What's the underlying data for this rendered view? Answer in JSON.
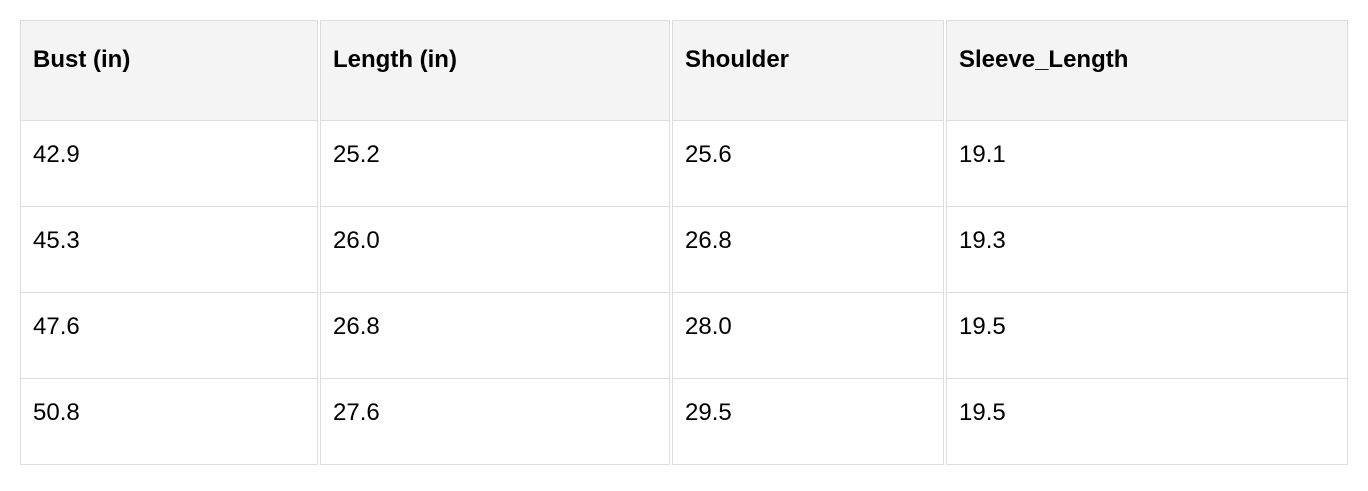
{
  "table": {
    "headers": [
      "Bust (in)",
      "Length (in)",
      "Shoulder",
      "Sleeve_Length"
    ],
    "rows": [
      [
        "42.9",
        "25.2",
        "25.6",
        "19.1"
      ],
      [
        "45.3",
        "26.0",
        "26.8",
        "19.3"
      ],
      [
        "47.6",
        "26.8",
        "28.0",
        "19.5"
      ],
      [
        "50.8",
        "27.6",
        "29.5",
        "19.5"
      ]
    ]
  },
  "colors": {
    "header_bg": "#f4f4f4",
    "border": "#dddddd"
  }
}
